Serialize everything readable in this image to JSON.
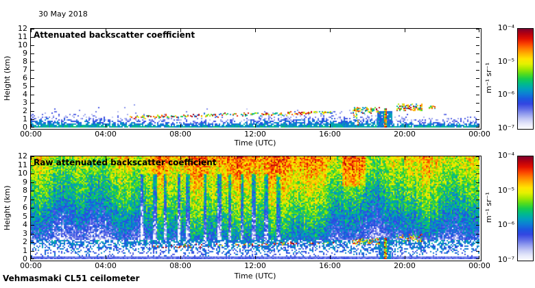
{
  "figure": {
    "date_label": "30 May 2018",
    "footer": "Vehmasmaki CL51 ceilometer",
    "background": "#ffffff",
    "axis_color": "#000000"
  },
  "colormap": {
    "description": "jet-like, low=white/lavender high=dark maroon",
    "stops": [
      "#fdfdff",
      "#e6e8fa",
      "#c2c7f4",
      "#929cee",
      "#5f6ce6",
      "#3346e1",
      "#1b57e0",
      "#0d7ed4",
      "#01a0bc",
      "#00ba8c",
      "#15cc4e",
      "#58dc1a",
      "#a6e800",
      "#e5f100",
      "#ffe400",
      "#ffb300",
      "#ff7e00",
      "#fa4200",
      "#e11000",
      "#b6000f",
      "#7c002e"
    ]
  },
  "chart_data": [
    {
      "type": "heatmap",
      "title": "Attenuated backscatter coefficient",
      "xlabel": "Time (UTC)",
      "ylabel": "Height (km)",
      "x_ticks": [
        "00:00",
        "04:00",
        "08:00",
        "12:00",
        "16:00",
        "20:00",
        "00:00"
      ],
      "x_tick_hours": [
        0,
        4,
        8,
        12,
        16,
        20,
        24
      ],
      "y_ticks": [
        0,
        1,
        2,
        3,
        4,
        5,
        6,
        7,
        8,
        9,
        10,
        11,
        12
      ],
      "xlim_hours": [
        0,
        24
      ],
      "ylim_km": [
        0,
        12
      ],
      "colorbar_ticks": [
        "10⁻⁴",
        "10⁻⁵",
        "10⁻⁶",
        "10⁻⁷"
      ],
      "colorbar_unit": "m⁻¹ sr⁻¹",
      "value_scale": "log10, 1e-7 (white) to 1e-4 (dark red) m-1 sr-1",
      "render": {
        "kind": "processed",
        "seed": 20180530,
        "bl_base": 0.82,
        "bl_wave": 0.22,
        "aerosol_layer": {
          "t0": 5.3,
          "t1": 16.2,
          "km0": 1.35,
          "km1": 1.95,
          "density": 0.8
        },
        "clusters": [
          {
            "t0": 17.2,
            "t1": 18.65,
            "km": 2.15,
            "spread": 0.35,
            "density": 0.55
          },
          {
            "t0": 17.25,
            "t1": 17.55,
            "km": 1.1,
            "spread": 0.8,
            "density": 0.35
          },
          {
            "t0": 19.55,
            "t1": 20.9,
            "km": 2.55,
            "spread": 0.4,
            "density": 0.55
          },
          {
            "t0": 21.3,
            "t1": 21.6,
            "km": 2.5,
            "spread": 0.2,
            "density": 0.4
          }
        ],
        "dip": {
          "t0": 18.55,
          "t1": 19.3,
          "km_top": 2.0
        },
        "streaks": [
          {
            "t": 18.9,
            "km_top": 2.3
          }
        ]
      }
    },
    {
      "type": "heatmap",
      "title": "Raw attenuated backscatter coefficient",
      "xlabel": "Time (UTC)",
      "ylabel": "Height (km)",
      "x_ticks": [
        "00:00",
        "04:00",
        "08:00",
        "12:00",
        "16:00",
        "20:00",
        "00:00"
      ],
      "x_tick_hours": [
        0,
        4,
        8,
        12,
        16,
        20,
        24
      ],
      "y_ticks": [
        0,
        1,
        2,
        3,
        4,
        5,
        6,
        7,
        8,
        9,
        10,
        11,
        12
      ],
      "xlim_hours": [
        0,
        24
      ],
      "ylim_km": [
        0,
        12
      ],
      "colorbar_ticks": [
        "10⁻⁴",
        "10⁻⁵",
        "10⁻⁶",
        "10⁻⁷"
      ],
      "colorbar_unit": "m⁻¹ sr⁻¹",
      "value_scale": "log10, 1e-7 (white) to 1e-4 (dark red) m-1 sr-1",
      "render": {
        "kind": "raw",
        "seed": 987654,
        "day_center": 11.3,
        "day_width": 4.6,
        "day_amp": 0.2,
        "hot_blobs": [
          {
            "t0": 16.6,
            "t1": 17.9,
            "km0": 8.5,
            "km1": 12,
            "amp": 0.16
          },
          {
            "t0": 19.9,
            "t1": 21.3,
            "km0": 2.5,
            "km1": 12,
            "amp": 0.09
          }
        ],
        "dark_streak_hours": [
          5.9,
          6.6,
          7.15,
          7.9,
          8.35,
          9.3,
          10.05,
          10.6,
          11.25,
          11.9,
          12.55,
          13.2
        ],
        "aerosol_layer": {
          "t0": 6.4,
          "t1": 16.2,
          "km0": 1.55,
          "km1": 2.0,
          "density": 0.45
        },
        "clusters": [
          {
            "t0": 17.2,
            "t1": 18.65,
            "km": 2.15,
            "spread": 0.35,
            "density": 0.45
          },
          {
            "t0": 19.55,
            "t1": 20.9,
            "km": 2.55,
            "spread": 0.4,
            "density": 0.45
          }
        ],
        "dip": {
          "t0": 18.6,
          "t1": 19.25,
          "km_top": 2.6
        },
        "streaks": [
          {
            "t": 18.9,
            "km_top": 2.5
          }
        ]
      }
    }
  ]
}
